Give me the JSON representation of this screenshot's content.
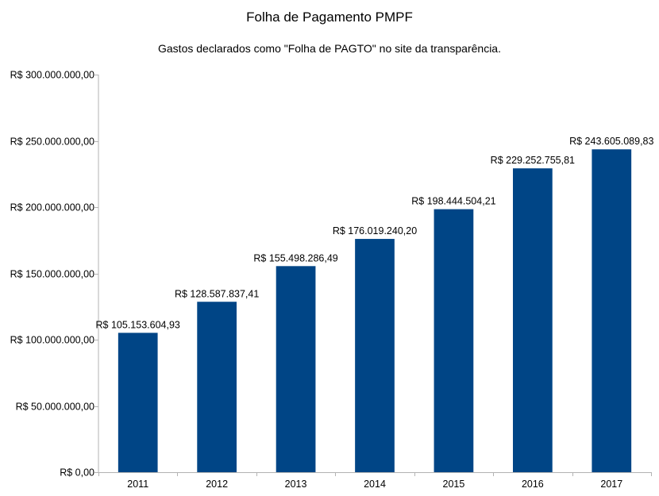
{
  "chart_data": {
    "type": "bar",
    "title": "Folha de Pagamento PMPF",
    "subtitle": "Gastos declarados como \"Folha de PAGTO\" no site da transparência.",
    "xlabel": "",
    "ylabel": "",
    "categories": [
      "2011",
      "2012",
      "2013",
      "2014",
      "2015",
      "2016",
      "2017"
    ],
    "values": [
      105153604.93,
      128587837.41,
      155498286.49,
      176019240.2,
      198444504.21,
      229252755.81,
      243605089.83
    ],
    "value_labels": [
      "R$ 105.153.604,93",
      "R$ 128.587.837,41",
      "R$ 155.498.286,49",
      "R$ 176.019.240,20",
      "R$ 198.444.504,21",
      "R$ 229.252.755,81",
      "R$ 243.605.089,83"
    ],
    "ylim": [
      0,
      300000000
    ],
    "yticks": [
      0,
      50000000,
      100000000,
      150000000,
      200000000,
      250000000,
      300000000
    ],
    "ytick_labels": [
      "R$ 0,00",
      "R$ 50.000.000,00",
      "R$ 100.000.000,00",
      "R$ 150.000.000,00",
      "R$ 200.000.000,00",
      "R$ 250.000.000,00",
      "R$ 300.000.000,00"
    ],
    "grid": false,
    "legend": "none",
    "bar_color": "#004586",
    "axis_color": "#b3b3b3"
  }
}
